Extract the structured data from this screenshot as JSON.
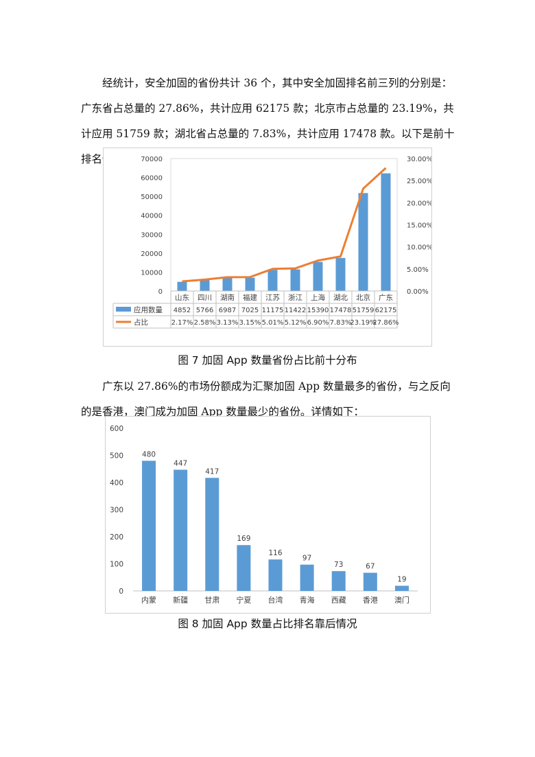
{
  "paragraphs": {
    "p1": "经统计，安全加固的省份共计 36 个，其中安全加固排名前三列的分别是：广东省占总量的 27.86%，共计应用 62175 款；北京市占总量的 23.19%，共计应用 51759 款；湖北省占总量的 7.83%，共计应用 17478 款。以下是前十排名情况：",
    "p2": "广东以 27.86%的市场份额成为汇聚加固 App 数量最多的省份，与之反向的是香港，澳门成为加固 App 数量最少的省份。详情如下："
  },
  "captions": {
    "fig7": "图 7  加固 App 数量省份占比前十分布",
    "fig8": "图 8  加固 App 数量占比排名靠后情况"
  },
  "chart_data": [
    {
      "type": "bar",
      "categories": [
        "山东",
        "四川",
        "湖南",
        "福建",
        "江苏",
        "浙江",
        "上海",
        "湖北",
        "北京",
        "广东"
      ],
      "series": [
        {
          "name": "应用数量",
          "type": "bar",
          "axis": "left",
          "color": "#5b9bd5",
          "values": [
            4852,
            5766,
            6987,
            7025,
            11175,
            11422,
            15390,
            17478,
            51759,
            62175
          ]
        },
        {
          "name": "占比",
          "type": "line",
          "axis": "right",
          "color": "#ed7d31",
          "values": [
            2.17,
            2.58,
            3.13,
            3.15,
            5.01,
            5.12,
            6.9,
            7.83,
            23.19,
            27.86
          ],
          "labels": [
            "2.17%",
            "2.58%",
            "3.13%",
            "3.15%",
            "5.01%",
            "5.12%",
            "6.90%",
            "7.83%",
            "23.19%",
            "27.86%"
          ]
        }
      ],
      "ylim": [
        0,
        70000
      ],
      "yticks": [
        "0",
        "10000",
        "20000",
        "30000",
        "40000",
        "50000",
        "60000",
        "70000"
      ],
      "y2lim": [
        0,
        30
      ],
      "y2ticks": [
        "0.00%",
        "5.00%",
        "10.00%",
        "15.00%",
        "20.00%",
        "25.00%",
        "30.00%"
      ],
      "data_table": true,
      "grid": false
    },
    {
      "type": "bar",
      "categories": [
        "内蒙",
        "新疆",
        "甘肃",
        "宁夏",
        "台湾",
        "青海",
        "西藏",
        "香港",
        "澳门"
      ],
      "values": [
        480,
        447,
        417,
        169,
        116,
        97,
        73,
        67,
        19
      ],
      "data_labels": [
        "480",
        "447",
        "417",
        "169",
        "116",
        "97",
        "73",
        "67",
        "19"
      ],
      "ylim": [
        0,
        600
      ],
      "yticks": [
        "0",
        "100",
        "200",
        "300",
        "400",
        "500",
        "600"
      ],
      "color": "#5b9bd5",
      "grid": false
    }
  ]
}
